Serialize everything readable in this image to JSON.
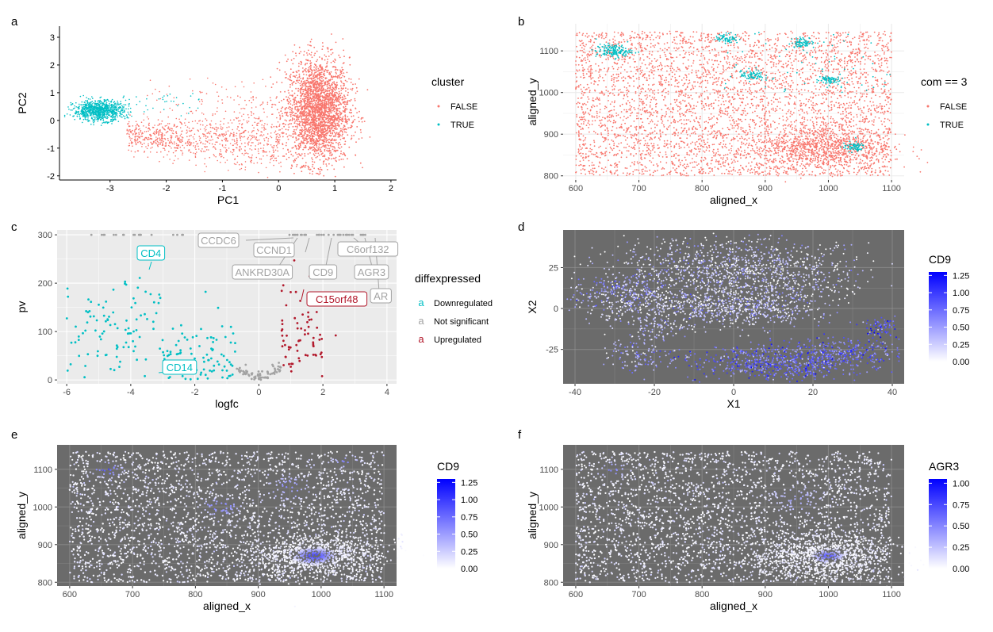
{
  "colors": {
    "red": "#F8766D",
    "teal": "#00BFC4",
    "grey": "#A3A3A3",
    "darkred": "#B2182B",
    "panel_gray": "#EBEBEB",
    "panel_dark": "#6B6B6B",
    "grad_low": "#FFFFFF",
    "grad_high": "#0000FF"
  },
  "chart_data": [
    {
      "panel_letter": "a",
      "type": "scatter",
      "xlabel": "PC1",
      "ylabel": "PC2",
      "xlim": [
        -3.9,
        2.1
      ],
      "ylim": [
        -2.15,
        3.4
      ],
      "xticks": [
        -3,
        -2,
        -1,
        0,
        1,
        2
      ],
      "yticks": [
        -2,
        -1,
        0,
        1,
        2,
        3
      ],
      "grid": false,
      "legend": {
        "title": "cluster",
        "position": "right",
        "entries": [
          "FALSE",
          "TRUE"
        ]
      },
      "series": [
        {
          "name": "FALSE",
          "color": "#F8766D",
          "description_cluster_center": [
            0.7,
            0.3
          ],
          "x_range": [
            -2.6,
            1.8
          ],
          "y_range": [
            -2.0,
            3.2
          ]
        },
        {
          "name": "TRUE",
          "color": "#00BFC4",
          "x_range": [
            -3.6,
            -1.4
          ],
          "y_range": [
            -0.2,
            1.0
          ]
        }
      ]
    },
    {
      "panel_letter": "b",
      "type": "scatter",
      "xlabel": "aligned_x",
      "ylabel": "aligned_y",
      "xlim": [
        580,
        1120
      ],
      "ylim": [
        790,
        1165
      ],
      "xticks": [
        600,
        700,
        800,
        900,
        1000,
        1100
      ],
      "yticks": [
        800,
        900,
        1000,
        1100
      ],
      "grid": true,
      "legend": {
        "title": "com == 3",
        "position": "right",
        "entries": [
          "FALSE",
          "TRUE"
        ]
      },
      "series": [
        {
          "name": "FALSE",
          "color": "#F8766D"
        },
        {
          "name": "TRUE",
          "color": "#00BFC4",
          "clusters": [
            [
              660,
              1100
            ],
            [
              1000,
              1030
            ],
            [
              1040,
              870
            ],
            [
              880,
              1040
            ],
            [
              840,
              1130
            ],
            [
              960,
              1120
            ]
          ]
        }
      ]
    },
    {
      "panel_letter": "c",
      "type": "scatter",
      "xlabel": "logfc",
      "ylabel": "pv",
      "xlim": [
        -6.3,
        4.3
      ],
      "ylim": [
        -8,
        310
      ],
      "xticks": [
        -6,
        -4,
        -2,
        0,
        2,
        4
      ],
      "yticks": [
        0,
        100,
        200,
        300
      ],
      "grid": true,
      "legend": {
        "title": "diffexpressed",
        "position": "right",
        "entries": [
          "Downregulated",
          "Not significant",
          "Upregulated"
        ],
        "key_glyph": "a"
      },
      "labels": [
        {
          "text": "CD4",
          "x": -3.6,
          "y": 240,
          "color": "#00BFC4"
        },
        {
          "text": "CD14",
          "x": -3.0,
          "y": 8,
          "color": "#00BFC4"
        },
        {
          "text": "C15orf48",
          "x": 1.2,
          "y": 265,
          "color": "#B2182B"
        },
        {
          "text": "CCDC6",
          "x": 0.8,
          "y": 300,
          "color": "#A3A3A3"
        },
        {
          "text": "CCND1",
          "x": 1.0,
          "y": 300,
          "color": "#A3A3A3"
        },
        {
          "text": "ANKRD30A",
          "x": 0.9,
          "y": 300,
          "color": "#A3A3A3"
        },
        {
          "text": "CD9",
          "x": 2.3,
          "y": 300,
          "color": "#A3A3A3"
        },
        {
          "text": "C6orf132",
          "x": 3.0,
          "y": 300,
          "color": "#A3A3A3"
        },
        {
          "text": "AGR3",
          "x": 3.6,
          "y": 300,
          "color": "#A3A3A3"
        },
        {
          "text": "AR",
          "x": 3.8,
          "y": 300,
          "color": "#A3A3A3"
        }
      ]
    },
    {
      "panel_letter": "d",
      "type": "scatter",
      "xlabel": "X1",
      "ylabel": "X2",
      "xlim": [
        -43,
        43
      ],
      "ylim": [
        -46,
        48
      ],
      "xticks": [
        -40,
        -20,
        0,
        20,
        40
      ],
      "yticks": [
        -25,
        0,
        25
      ],
      "grid": true,
      "legend": {
        "title": "CD9",
        "position": "right",
        "type": "gradient",
        "breaks": [
          "1.25",
          "1.00",
          "0.75",
          "0.50",
          "0.25",
          "0.00"
        ],
        "range": [
          0,
          1.3
        ]
      }
    },
    {
      "panel_letter": "e",
      "type": "scatter",
      "xlabel": "aligned_x",
      "ylabel": "aligned_y",
      "xlim": [
        580,
        1120
      ],
      "ylim": [
        790,
        1165
      ],
      "xticks": [
        600,
        700,
        800,
        900,
        1000,
        1100
      ],
      "yticks": [
        800,
        900,
        1000,
        1100
      ],
      "grid": true,
      "legend": {
        "title": "CD9",
        "position": "right",
        "type": "gradient",
        "breaks": [
          "1.25",
          "1.00",
          "0.75",
          "0.50",
          "0.25",
          "0.00"
        ],
        "range": [
          0,
          1.3
        ]
      }
    },
    {
      "panel_letter": "f",
      "type": "scatter",
      "xlabel": "aligned_x",
      "ylabel": "aligned_y",
      "xlim": [
        580,
        1120
      ],
      "ylim": [
        790,
        1165
      ],
      "xticks": [
        600,
        700,
        800,
        900,
        1000,
        1100
      ],
      "yticks": [
        800,
        900,
        1000,
        1100
      ],
      "grid": true,
      "legend": {
        "title": "AGR3",
        "position": "right",
        "type": "gradient",
        "breaks": [
          "1.00",
          "0.75",
          "0.50",
          "0.25",
          "0.00"
        ],
        "range": [
          0,
          1.05
        ]
      }
    }
  ]
}
